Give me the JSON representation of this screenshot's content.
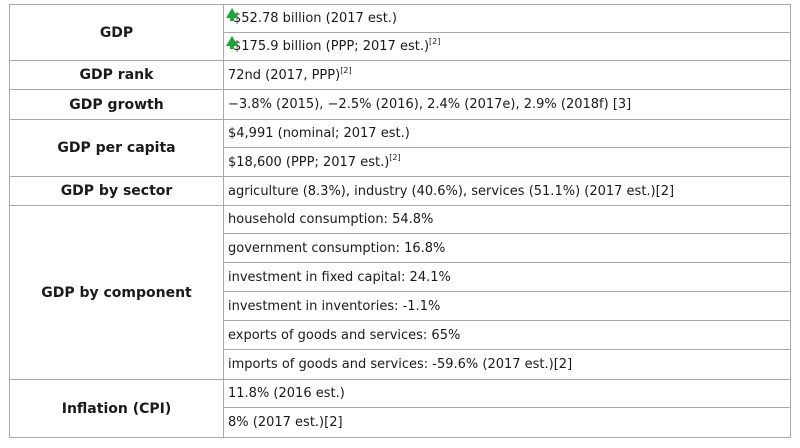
{
  "table": {
    "gdp": {
      "label": "GDP",
      "nominal_value": "$52.78 billion (2017 est.)",
      "nominal_trend_icon": "green-up-arrow",
      "ppp_value": "$175.9 billion (PPP; 2017 est.)",
      "ppp_ref": "[2]",
      "ppp_trend_icon": "green-up-arrow"
    },
    "gdp_rank": {
      "label": "GDP rank",
      "value": "72nd (2017, PPP)",
      "ref": "[2]"
    },
    "gdp_growth": {
      "label": "GDP growth",
      "value": "−3.8% (2015), −2.5% (2016), 2.4% (2017e), 2.9% (2018f) [3]"
    },
    "gdp_per_capita": {
      "label": "GDP per capita",
      "nominal": "$4,991 (nominal; 2017 est.)",
      "ppp": "$18,600 (PPP; 2017 est.)",
      "ppp_ref": "[2]"
    },
    "gdp_by_sector": {
      "label": "GDP by sector",
      "value": "agriculture (8.3%), industry (40.6%), services (51.1%) (2017 est.)[2]"
    },
    "gdp_by_component": {
      "label": "GDP by component",
      "items": [
        "household consumption: 54.8%",
        "government consumption: 16.8%",
        "investment in fixed capital: 24.1%",
        "investment in inventories: -1.1%",
        "exports of goods and services: 65%",
        "imports of goods and services: -59.6% (2017 est.)[2]"
      ]
    },
    "inflation": {
      "label": "Inflation (CPI)",
      "items": [
        "11.8% (2016 est.)",
        "8% (2017 est.)[2]"
      ]
    }
  },
  "colors": {
    "arrow_up": "#1fa53a",
    "border": "#a9a9a9"
  }
}
